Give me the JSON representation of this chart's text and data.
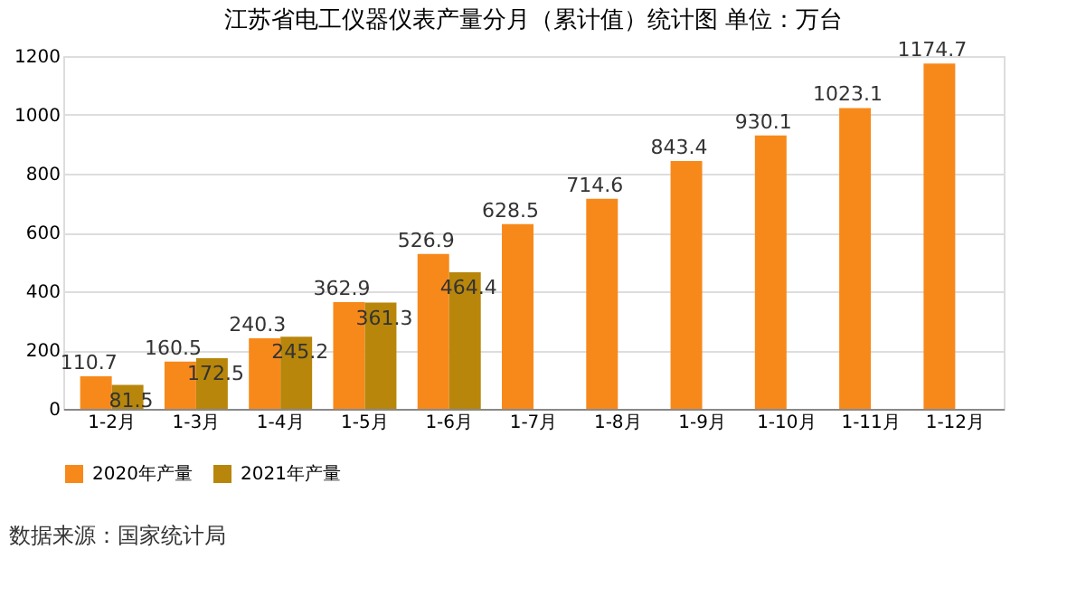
{
  "chart_data": {
    "type": "bar",
    "title": "江苏省电工仪器仪表产量分月（累计值）统计图 单位：万台",
    "categories": [
      "1-2月",
      "1-3月",
      "1-4月",
      "1-5月",
      "1-6月",
      "1-7月",
      "1-8月",
      "1-9月",
      "1-10月",
      "1-11月",
      "1-12月"
    ],
    "series": [
      {
        "name": "2020年产量",
        "color": "#f7891b",
        "values": [
          110.7,
          160.5,
          240.3,
          362.9,
          526.9,
          628.5,
          714.6,
          843.4,
          930.1,
          1023.1,
          1174.7
        ]
      },
      {
        "name": "2021年产量",
        "color": "#b8860b",
        "values": [
          81.5,
          172.5,
          245.2,
          361.3,
          464.4,
          null,
          null,
          null,
          null,
          null,
          null
        ]
      }
    ],
    "ylim": [
      0,
      1200
    ],
    "yticks": [
      0,
      200,
      400,
      600,
      800,
      1000,
      1200
    ],
    "grid": "y",
    "legend": "bottom",
    "data_labels": true,
    "annotations": [
      "数据来源：国家统计局"
    ]
  }
}
